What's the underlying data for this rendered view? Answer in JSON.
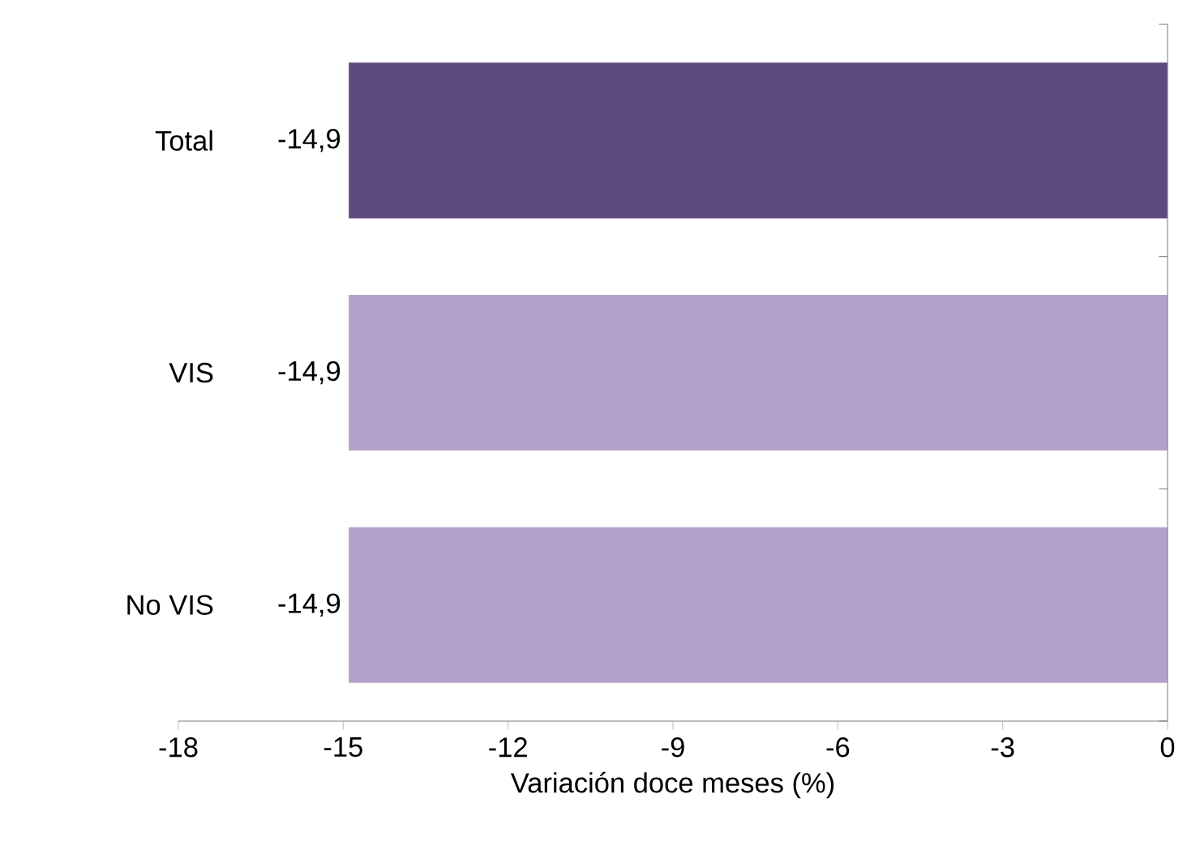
{
  "chart_data": {
    "type": "bar",
    "orientation": "horizontal",
    "xlabel": "Variación doce meses (%)",
    "categories": [
      "Total",
      "VIS",
      "No VIS"
    ],
    "values": [
      -14.9,
      -14.9,
      -14.9
    ],
    "colors": [
      "#5f4a7e",
      "#b3a1c9",
      "#b3a1c9"
    ],
    "value_labels": [
      "-14,9",
      "-14,9",
      "-14,9"
    ],
    "xlim": [
      -18,
      0
    ],
    "xticks": [
      -18,
      -15,
      -12,
      -9,
      -6,
      -3,
      0
    ]
  }
}
